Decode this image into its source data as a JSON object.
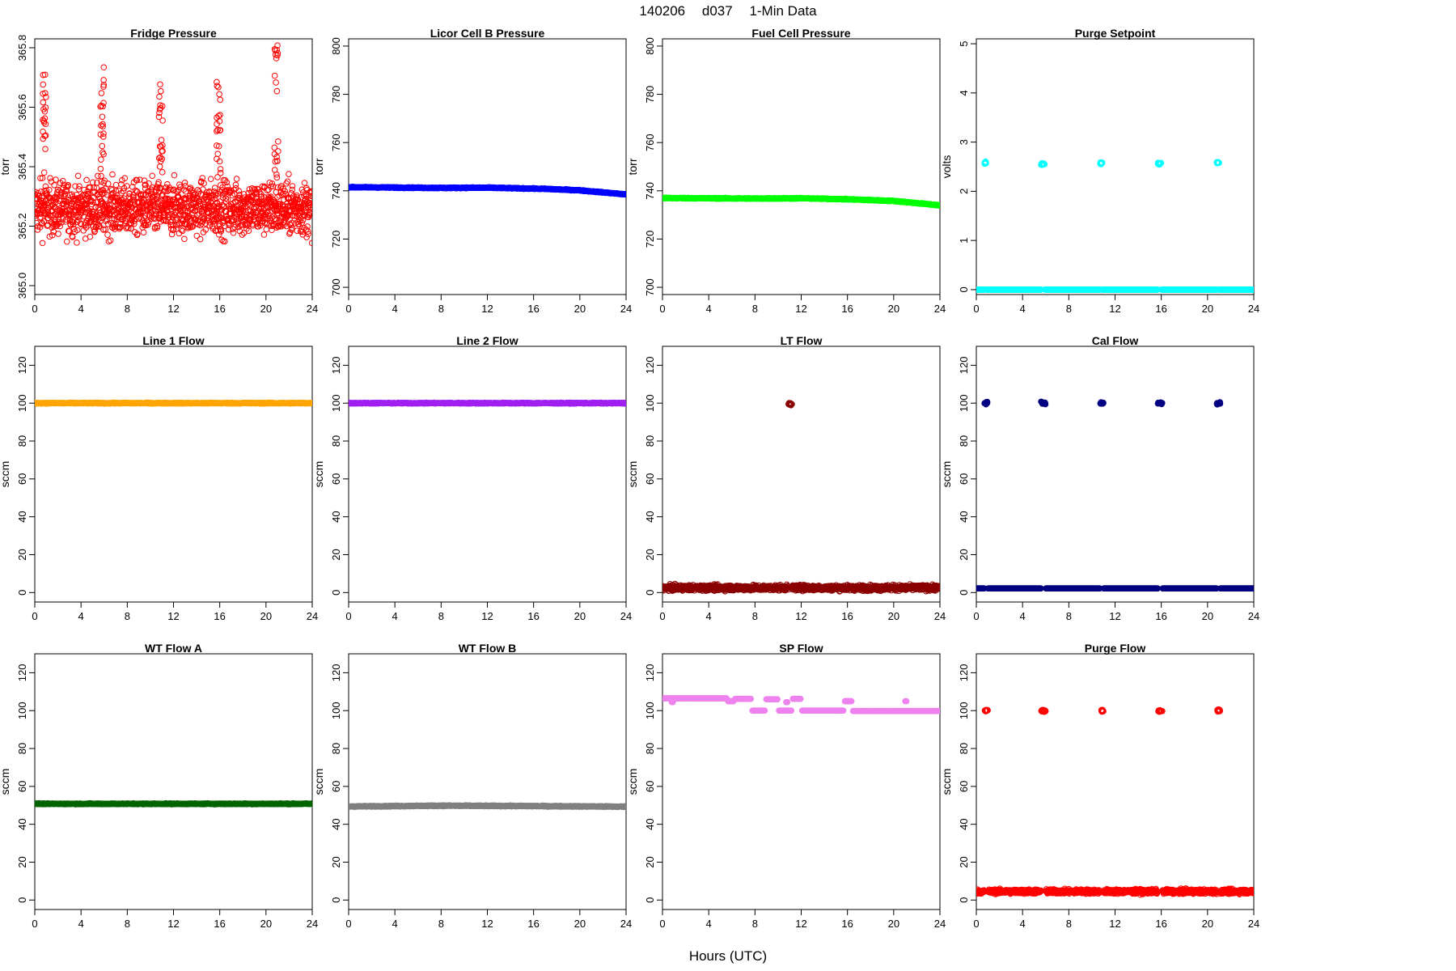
{
  "header": {
    "parts": [
      "140206",
      "d037",
      "1-Min Data"
    ]
  },
  "xlabel": "Hours (UTC)",
  "chart_data": [
    {
      "type": "scatter",
      "title": "Fridge Pressure",
      "ylabel": "torr",
      "color": "#ff0000",
      "marker": "open-circle",
      "xlim": [
        0,
        24
      ],
      "ylim": [
        364.97,
        365.83
      ],
      "xticks": [
        "0",
        "4",
        "8",
        "12",
        "16",
        "20",
        "24"
      ],
      "yticks": [
        "365.0",
        "365.2",
        "365.4",
        "365.6",
        "365.8"
      ],
      "pattern": "noise",
      "base": 365.26,
      "spread": 0.09,
      "spikes": [
        [
          0.8,
          365.72
        ],
        [
          5.8,
          365.74
        ],
        [
          10.9,
          365.68
        ],
        [
          15.9,
          365.72
        ],
        [
          20.9,
          365.82
        ]
      ]
    },
    {
      "type": "scatter",
      "title": "Licor Cell B Pressure",
      "ylabel": "torr",
      "color": "#0000ff",
      "marker": "filled",
      "xlim": [
        0,
        24
      ],
      "ylim": [
        697,
        803
      ],
      "xticks": [
        "0",
        "4",
        "8",
        "12",
        "16",
        "20",
        "24"
      ],
      "yticks": [
        "700",
        "720",
        "740",
        "760",
        "780",
        "800"
      ],
      "pattern": "trend",
      "points": [
        [
          0,
          741.5
        ],
        [
          8,
          741.2
        ],
        [
          12,
          741.3
        ],
        [
          17,
          740.8
        ],
        [
          20,
          740.2
        ],
        [
          24,
          738.5
        ]
      ]
    },
    {
      "type": "scatter",
      "title": "Fuel Cell Pressure",
      "ylabel": "torr",
      "color": "#00ff00",
      "marker": "filled",
      "xlim": [
        0,
        24
      ],
      "ylim": [
        697,
        803
      ],
      "xticks": [
        "0",
        "4",
        "8",
        "12",
        "16",
        "20",
        "24"
      ],
      "yticks": [
        "700",
        "720",
        "740",
        "760",
        "780",
        "800"
      ],
      "pattern": "trend",
      "points": [
        [
          0,
          737.0
        ],
        [
          8,
          736.8
        ],
        [
          12,
          736.9
        ],
        [
          16,
          736.5
        ],
        [
          20,
          735.8
        ],
        [
          24,
          734.0
        ]
      ]
    },
    {
      "type": "scatter",
      "title": "Purge Setpoint",
      "ylabel": "volts",
      "color": "#00ffff",
      "marker": "open-circle",
      "xlim": [
        0,
        24
      ],
      "ylim": [
        -0.1,
        5.1
      ],
      "xticks": [
        "0",
        "4",
        "8",
        "12",
        "16",
        "20",
        "24"
      ],
      "yticks": [
        "0",
        "1",
        "2",
        "3",
        "4",
        "5"
      ],
      "pattern": "baseline",
      "base": 0,
      "spread": 0.0,
      "clusters": [
        [
          0.7,
          0.9,
          2.58
        ],
        [
          5.6,
          5.9,
          2.56
        ],
        [
          10.7,
          10.9,
          2.57
        ],
        [
          15.7,
          16.0,
          2.56
        ],
        [
          20.8,
          21.0,
          2.58
        ]
      ]
    },
    {
      "type": "scatter",
      "title": "Line 1 Flow",
      "ylabel": "sccm",
      "color": "#ffa500",
      "marker": "filled",
      "xlim": [
        0,
        24
      ],
      "ylim": [
        -5,
        130
      ],
      "xticks": [
        "0",
        "4",
        "8",
        "12",
        "16",
        "20",
        "24"
      ],
      "yticks": [
        "0",
        "20",
        "40",
        "60",
        "80",
        "100",
        "120"
      ],
      "pattern": "trend",
      "points": [
        [
          0,
          100
        ],
        [
          24,
          100
        ]
      ]
    },
    {
      "type": "scatter",
      "title": "Line 2 Flow",
      "ylabel": "sccm",
      "color": "#a020f0",
      "marker": "filled",
      "xlim": [
        0,
        24
      ],
      "ylim": [
        -5,
        130
      ],
      "xticks": [
        "0",
        "4",
        "8",
        "12",
        "16",
        "20",
        "24"
      ],
      "yticks": [
        "0",
        "20",
        "40",
        "60",
        "80",
        "100",
        "120"
      ],
      "pattern": "trend",
      "points": [
        [
          0,
          100
        ],
        [
          24,
          100
        ]
      ]
    },
    {
      "type": "scatter",
      "title": "LT Flow",
      "ylabel": "sccm",
      "color": "#8b0000",
      "marker": "open-circle",
      "xlim": [
        0,
        24
      ],
      "ylim": [
        -5,
        130
      ],
      "xticks": [
        "0",
        "4",
        "8",
        "12",
        "16",
        "20",
        "24"
      ],
      "yticks": [
        "0",
        "20",
        "40",
        "60",
        "80",
        "100",
        "120"
      ],
      "pattern": "baseline",
      "base": 2.5,
      "spread": 2.0,
      "clusters": [
        [
          10.9,
          11.2,
          99.5
        ]
      ]
    },
    {
      "type": "scatter",
      "title": "Cal Flow",
      "ylabel": "sccm",
      "color": "#000080",
      "marker": "filled",
      "xlim": [
        0,
        24
      ],
      "ylim": [
        -5,
        130
      ],
      "xticks": [
        "0",
        "4",
        "8",
        "12",
        "16",
        "20",
        "24"
      ],
      "yticks": [
        "0",
        "20",
        "40",
        "60",
        "80",
        "100",
        "120"
      ],
      "pattern": "baseline",
      "base": 2.2,
      "spread": 0.0,
      "clusters": [
        [
          0.7,
          1.0,
          100
        ],
        [
          5.6,
          6.0,
          100
        ],
        [
          10.7,
          11.0,
          100
        ],
        [
          15.7,
          16.1,
          100
        ],
        [
          20.8,
          21.1,
          100
        ]
      ]
    },
    {
      "type": "scatter",
      "title": "WT Flow A",
      "ylabel": "sccm",
      "color": "#006400",
      "marker": "filled",
      "xlim": [
        0,
        24
      ],
      "ylim": [
        -5,
        130
      ],
      "xticks": [
        "0",
        "4",
        "8",
        "12",
        "16",
        "20",
        "24"
      ],
      "yticks": [
        "0",
        "20",
        "40",
        "60",
        "80",
        "100",
        "120"
      ],
      "pattern": "trend",
      "points": [
        [
          0,
          50.8
        ],
        [
          24,
          50.8
        ]
      ]
    },
    {
      "type": "scatter",
      "title": "WT Flow B",
      "ylabel": "sccm",
      "color": "#808080",
      "marker": "filled",
      "xlim": [
        0,
        24
      ],
      "ylim": [
        -5,
        130
      ],
      "xticks": [
        "0",
        "4",
        "8",
        "12",
        "16",
        "20",
        "24"
      ],
      "yticks": [
        "0",
        "20",
        "40",
        "60",
        "80",
        "100",
        "120"
      ],
      "pattern": "trend",
      "points": [
        [
          0,
          49.4
        ],
        [
          8,
          49.8
        ],
        [
          16,
          49.6
        ],
        [
          24,
          49.3
        ]
      ]
    },
    {
      "type": "scatter",
      "title": "SP Flow",
      "ylabel": "sccm",
      "color": "#ee82ee",
      "marker": "filled",
      "xlim": [
        0,
        24
      ],
      "ylim": [
        -5,
        130
      ],
      "xticks": [
        "0",
        "4",
        "8",
        "12",
        "16",
        "20",
        "24"
      ],
      "yticks": [
        "0",
        "20",
        "40",
        "60",
        "80",
        "100",
        "120"
      ],
      "pattern": "segments",
      "segments": [
        [
          0,
          5.6,
          106.5
        ],
        [
          5.6,
          6.2,
          105.0
        ],
        [
          6.2,
          7.7,
          106.2
        ],
        [
          7.7,
          8.9,
          100.0
        ],
        [
          8.9,
          10.0,
          106.0
        ],
        [
          10.0,
          11.2,
          100.0
        ],
        [
          11.2,
          12.0,
          106.2
        ],
        [
          12.0,
          15.7,
          100.0
        ],
        [
          15.7,
          16.4,
          105.0
        ],
        [
          16.4,
          24,
          99.8
        ]
      ],
      "extras": [
        [
          0.8,
          104.5
        ],
        [
          10.7,
          104.5
        ],
        [
          21.0,
          105.0
        ]
      ]
    },
    {
      "type": "scatter",
      "title": "Purge Flow",
      "ylabel": "sccm",
      "color": "#ff0000",
      "marker": "open-circle",
      "xlim": [
        0,
        24
      ],
      "ylim": [
        -5,
        130
      ],
      "xticks": [
        "0",
        "4",
        "8",
        "12",
        "16",
        "20",
        "24"
      ],
      "yticks": [
        "0",
        "20",
        "40",
        "60",
        "80",
        "100",
        "120"
      ],
      "pattern": "baseline",
      "base": 4.5,
      "spread": 1.6,
      "clusters": [
        [
          0.7,
          1.0,
          100
        ],
        [
          5.6,
          6.0,
          100
        ],
        [
          10.7,
          11.0,
          100
        ],
        [
          15.7,
          16.1,
          100
        ],
        [
          20.8,
          21.1,
          100
        ]
      ]
    }
  ]
}
